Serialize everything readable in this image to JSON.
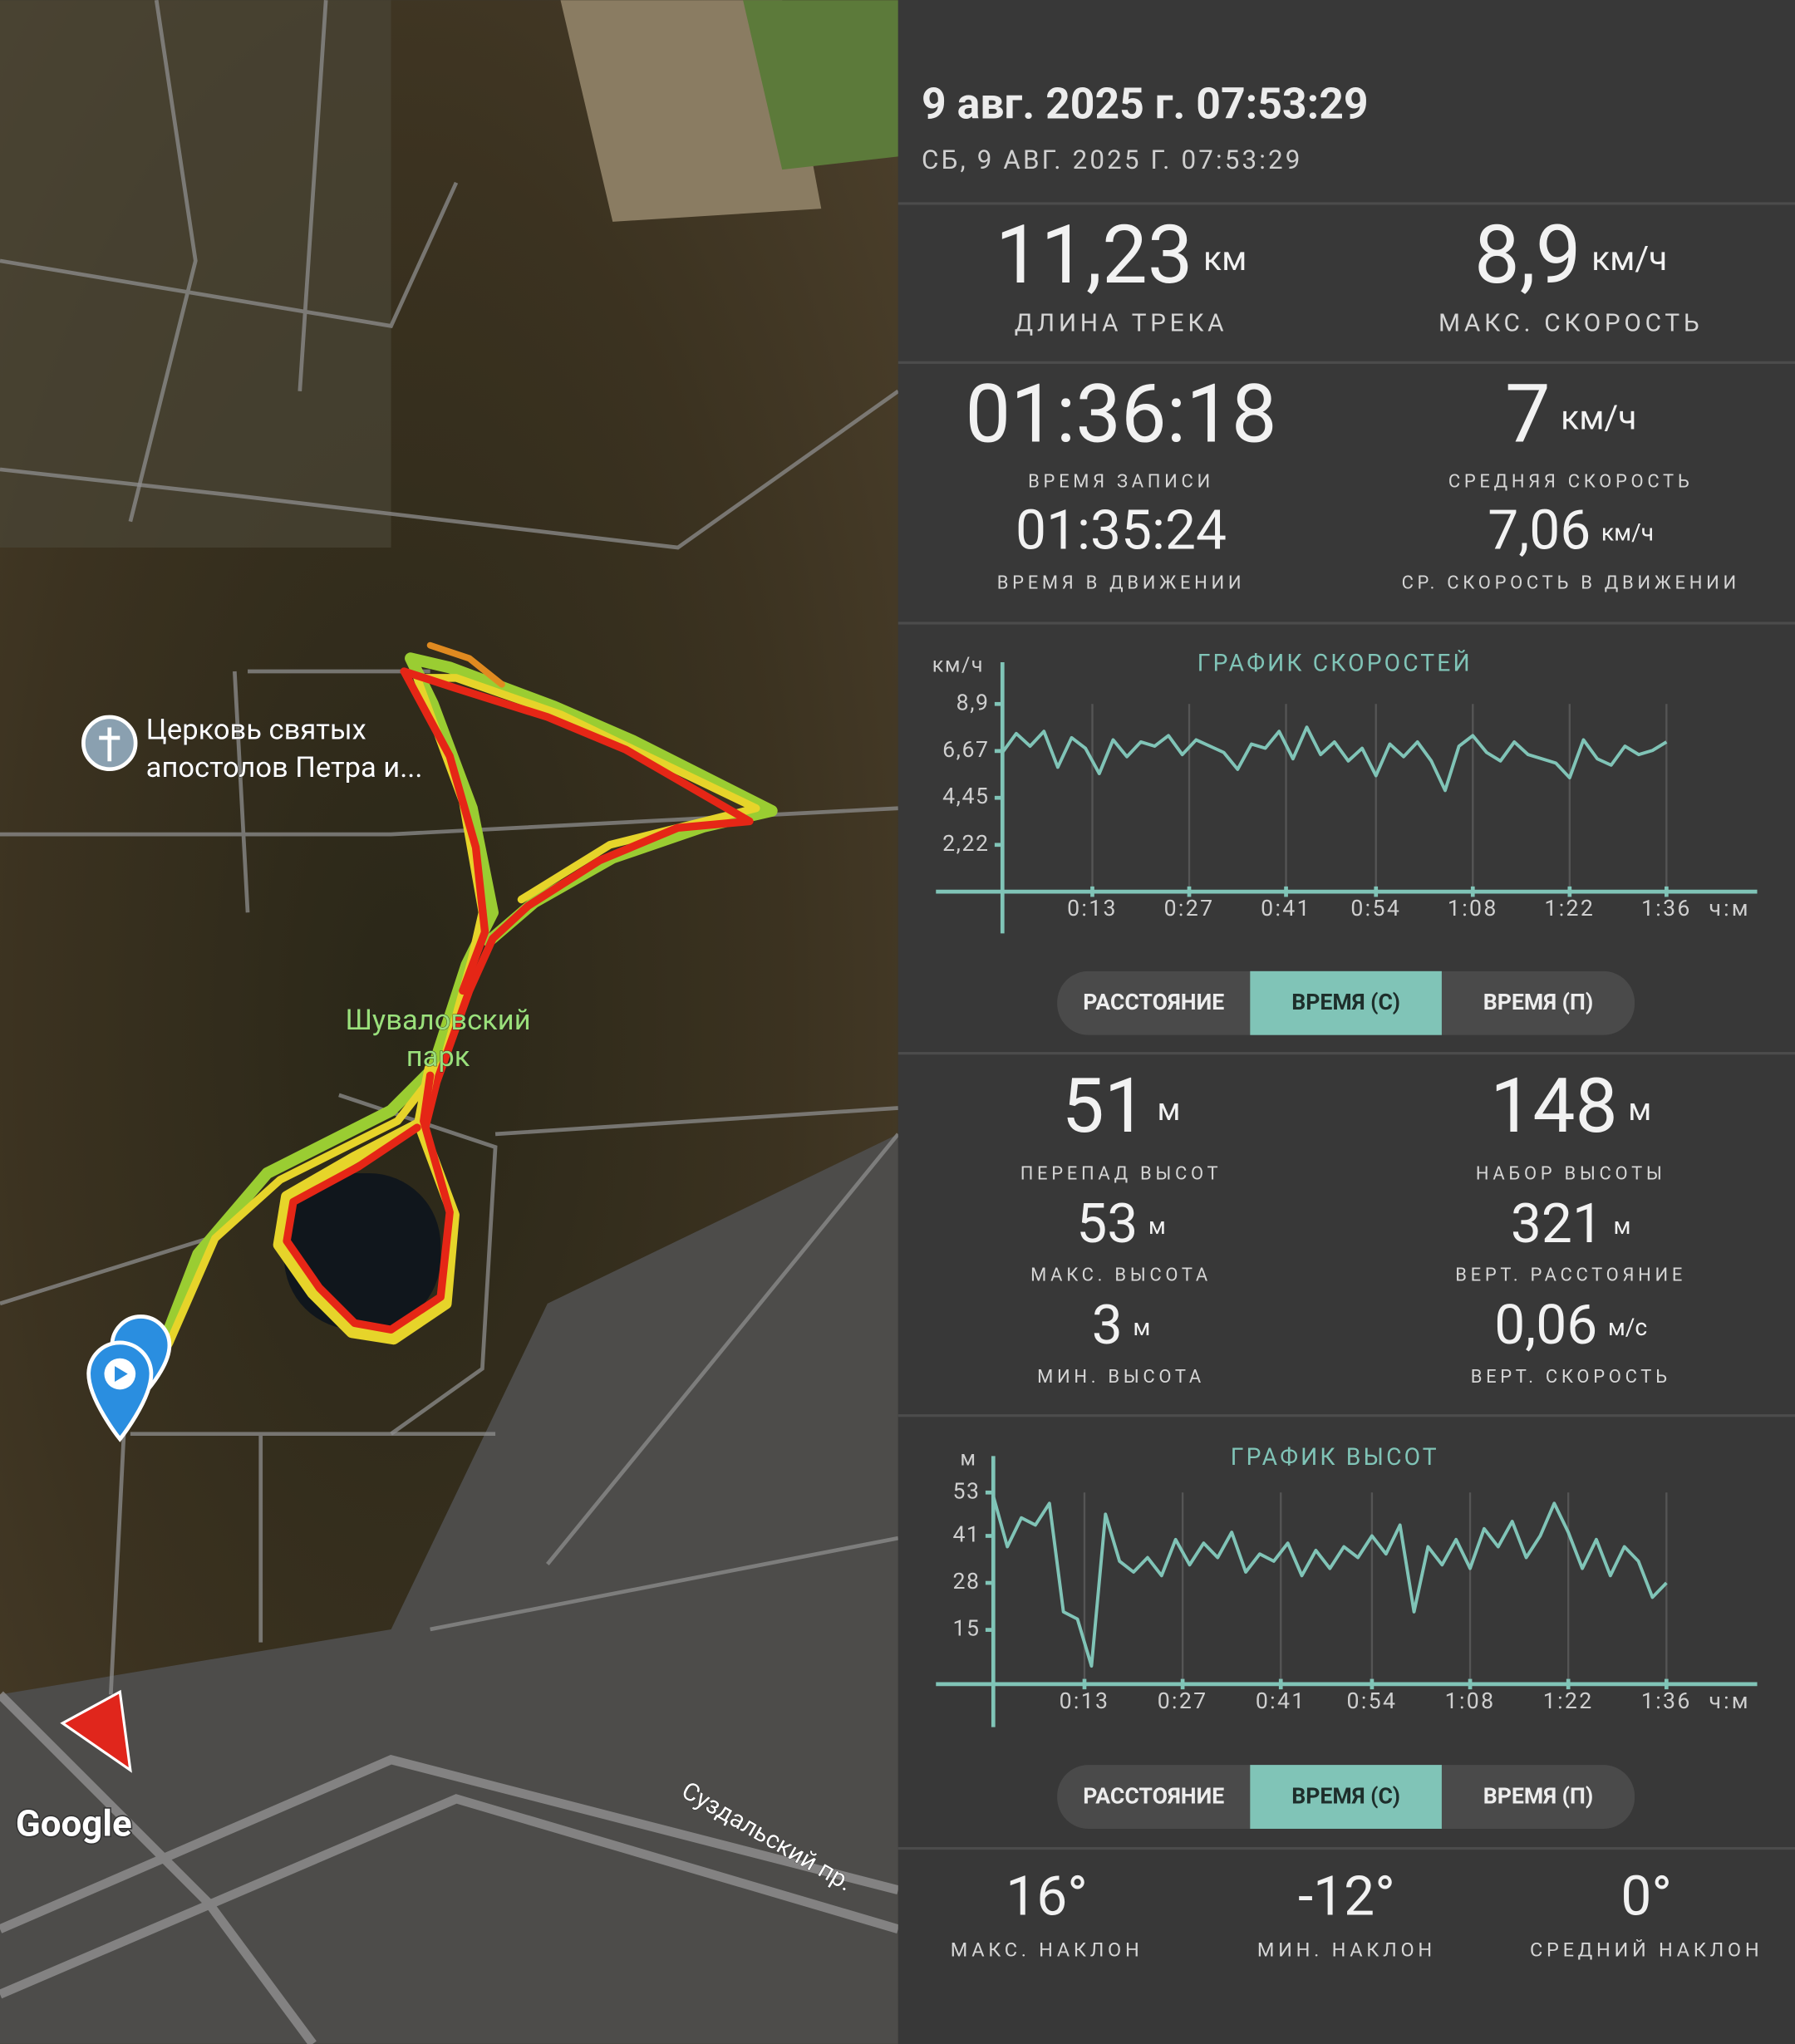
{
  "map": {
    "labels": [
      "Церковь святых",
      "апостолов Петра и...",
      "Шуваловский",
      "парк",
      "Суздальский пр.",
      "Google"
    ]
  },
  "header": {
    "title": "9 авг. 2025 г. 07:53:29",
    "subtitle": "СБ, 9 АВГ. 2025 Г. 07:53:29"
  },
  "stats": [
    {
      "value": "11,23",
      "unit": "км",
      "label": "ДЛИНА ТРЕКА"
    },
    {
      "value": "8,9",
      "unit": "км/ч",
      "label": "МАКС. СКОРОСТЬ"
    },
    {
      "value": "01:36:18",
      "label": "ВРЕМЯ ЗАПИСИ"
    },
    {
      "value": "7",
      "unit": "км/ч",
      "label": "СРЕДНЯЯ СКОРОСТЬ"
    },
    {
      "value": "01:35:24",
      "label": "ВРЕМЯ В ДВИЖЕНИИ"
    },
    {
      "value": "7,06",
      "unit": "км/ч",
      "label": "СР. СКОРОСТЬ В ДВИЖЕНИИ"
    },
    {
      "value": "51",
      "unit": "м",
      "label": "ПЕРЕПАД ВЫСОТ"
    },
    {
      "value": "148",
      "unit": "м",
      "label": "НАБОР ВЫСОТЫ"
    },
    {
      "value": "53",
      "unit": "м",
      "label": "МАКС. ВЫСОТА"
    },
    {
      "value": "321",
      "unit": "м",
      "label": "ВЕРТ. РАССТОЯНИЕ"
    },
    {
      "value": "3",
      "unit": "м",
      "label": "МИН. ВЫСОТА"
    },
    {
      "value": "0,06",
      "unit": "м/с",
      "label": "ВЕРТ. СКОРОСТЬ"
    }
  ],
  "chart_data": [
    {
      "type": "line",
      "title": "ГРАФИК СКОРОСТЕЙ",
      "y_unit": "км/ч",
      "x_unit": "ч:м",
      "color": "#80c4b7",
      "grid": true,
      "x": [
        0,
        2,
        4,
        6,
        8,
        10,
        12,
        14,
        16,
        18,
        20,
        22,
        24,
        26,
        28,
        30,
        32,
        34,
        36,
        38,
        40,
        42,
        44,
        46,
        48,
        50,
        52,
        54,
        56,
        58,
        60,
        62,
        64,
        66,
        68,
        70,
        72,
        74,
        76,
        78,
        80,
        82,
        84,
        86,
        88,
        90,
        92,
        94,
        96
      ],
      "values": [
        6.6,
        7.5,
        6.9,
        7.6,
        5.9,
        7.3,
        6.8,
        5.6,
        7.2,
        6.4,
        7.1,
        6.9,
        7.4,
        6.5,
        7.2,
        6.9,
        6.6,
        5.8,
        7.0,
        6.8,
        7.6,
        6.3,
        7.8,
        6.5,
        7.1,
        6.2,
        6.8,
        5.5,
        7.0,
        6.4,
        7.1,
        6.2,
        4.8,
        6.9,
        7.4,
        6.6,
        6.2,
        7.1,
        6.5,
        6.3,
        6.1,
        5.4,
        7.2,
        6.3,
        6.0,
        6.9,
        6.5,
        6.7,
        7.1
      ],
      "xlim": [
        0,
        96.3
      ],
      "xticks": [
        {
          "value": 13,
          "label": "0:13"
        },
        {
          "value": 27,
          "label": "0:27"
        },
        {
          "value": 41,
          "label": "0:41"
        },
        {
          "value": 54,
          "label": "0:54"
        },
        {
          "value": 68,
          "label": "1:08"
        },
        {
          "value": 82,
          "label": "1:22"
        },
        {
          "value": 96,
          "label": "1:36"
        }
      ],
      "ylim": [
        0,
        8.9
      ],
      "yticks": [
        {
          "value": 2.22,
          "label": "2,22"
        },
        {
          "value": 4.45,
          "label": "4,45"
        },
        {
          "value": 6.67,
          "label": "6,67"
        },
        {
          "value": 8.9,
          "label": "8,9"
        }
      ]
    },
    {
      "type": "line",
      "title": "ГРАФИК ВЫСОТ",
      "y_unit": "м",
      "x_unit": "ч:м",
      "color": "#80c4b7",
      "grid": true,
      "x": [
        0,
        2,
        4,
        6,
        8,
        10,
        12,
        14,
        16,
        18,
        20,
        22,
        24,
        26,
        28,
        30,
        32,
        34,
        36,
        38,
        40,
        42,
        44,
        46,
        48,
        50,
        52,
        54,
        56,
        58,
        60,
        62,
        64,
        66,
        68,
        70,
        72,
        74,
        76,
        78,
        80,
        82,
        84,
        86,
        88,
        90,
        92,
        94,
        96
      ],
      "values": [
        52,
        38,
        46,
        44,
        50,
        20,
        18,
        5,
        47,
        34,
        31,
        35,
        30,
        40,
        33,
        39,
        35,
        42,
        31,
        36,
        34,
        39,
        30,
        37,
        32,
        38,
        35,
        41,
        36,
        44,
        20,
        38,
        33,
        40,
        32,
        43,
        38,
        45,
        35,
        41,
        50,
        42,
        32,
        40,
        30,
        38,
        34,
        24,
        28
      ],
      "xlim": [
        0,
        96.3
      ],
      "xticks": [
        {
          "value": 13,
          "label": "0:13"
        },
        {
          "value": 27,
          "label": "0:27"
        },
        {
          "value": 41,
          "label": "0:41"
        },
        {
          "value": 54,
          "label": "0:54"
        },
        {
          "value": 68,
          "label": "1:08"
        },
        {
          "value": 82,
          "label": "1:22"
        },
        {
          "value": 96,
          "label": "1:36"
        }
      ],
      "ylim": [
        0,
        53
      ],
      "yticks": [
        15,
        28,
        41,
        53
      ]
    }
  ],
  "toggles": [
    {
      "options": [
        "РАССТОЯНИЕ",
        "ВРЕМЯ (С)",
        "ВРЕМЯ (П)"
      ],
      "active": 1
    },
    {
      "options": [
        "РАССТОЯНИЕ",
        "ВРЕМЯ (С)",
        "ВРЕМЯ (П)"
      ],
      "active": 1
    }
  ],
  "slope": [
    {
      "value": "16°",
      "label": "МАКС. НАКЛОН"
    },
    {
      "value": "-12°",
      "label": "МИН. НАКЛОН"
    },
    {
      "value": "0°",
      "label": "СРЕДНИЙ НАКЛОН"
    }
  ]
}
